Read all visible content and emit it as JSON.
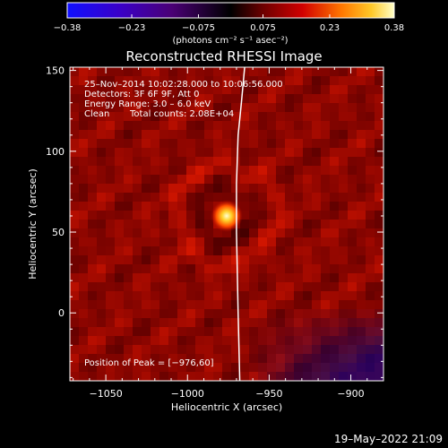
{
  "chart_data": {
    "type": "heatmap",
    "title": "Reconstructed RHESSI Image",
    "xlabel": "Heliocentric X (arcsec)",
    "ylabel": "Heliocentric Y (arcsec)",
    "xlim": [
      -1072,
      -880
    ],
    "ylim": [
      -42,
      152
    ],
    "x_ticks": [
      -1050,
      -1000,
      -950,
      -900
    ],
    "x_tick_labels": [
      "−1050",
      "−1000",
      "−950",
      "−900"
    ],
    "y_ticks": [
      0,
      50,
      100,
      150
    ],
    "y_tick_labels": [
      "0",
      "50",
      "100",
      "150"
    ],
    "colorbar": {
      "range": [
        -0.38,
        0.38
      ],
      "ticks": [
        -0.38,
        -0.23,
        -0.075,
        0.075,
        0.23,
        0.38
      ],
      "tick_labels": [
        "−0.38",
        "−0.23",
        "−0.075",
        "0.075",
        "0.23",
        "0.38"
      ],
      "units": "(photons cm⁻² s⁻¹ asec⁻²)"
    },
    "peak": {
      "x": -976,
      "y": 60
    },
    "annotations": {
      "time_range": "25–Nov–2014 10:02:28.000 to 10:06:56.000",
      "detectors": "Detectors: 3F 6F 9F, Att 0",
      "energy": "Energy Range: 3.0 – 6.0 keV",
      "algorithm": "Clean",
      "total_counts": "Total counts: 2.08E+04",
      "peak_position": "Position of Peak = [−976,60]"
    },
    "limb_curve": [
      [
        -968,
        -42
      ],
      [
        -969,
        0
      ],
      [
        -970,
        50
      ],
      [
        -970,
        80
      ],
      [
        -969,
        110
      ],
      [
        -967,
        130
      ],
      [
        -965,
        152
      ]
    ]
  },
  "footer": {
    "timestamp": "19–May–2022 21:09"
  },
  "colors": {
    "background": "#000000",
    "foreground": "#ffffff",
    "limb": "#ffffff"
  }
}
